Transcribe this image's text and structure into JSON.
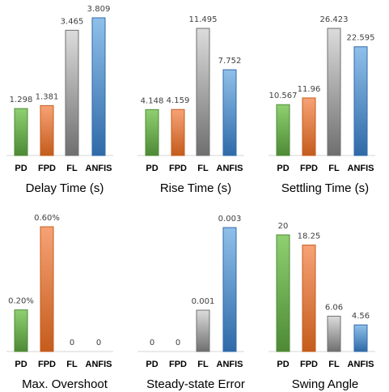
{
  "colors": {
    "PD": [
      "#4e8a36",
      "#8fd071"
    ],
    "FPD": [
      "#c45c1c",
      "#f7a276"
    ],
    "FL": [
      "#6f6f6f",
      "#dcdcdc"
    ],
    "ANFIS": [
      "#2f6aa8",
      "#8fc0ea"
    ]
  },
  "chart_data": [
    {
      "type": "bar",
      "title": "Delay Time  (s)",
      "categories": [
        "PD",
        "FPD",
        "FL",
        "ANFIS"
      ],
      "values": [
        1.298,
        1.381,
        3.465,
        3.809
      ],
      "labels": [
        "1.298",
        "1.381",
        "3.465",
        "3.809"
      ],
      "ylim": [
        0,
        3.809
      ]
    },
    {
      "type": "bar",
      "title": "Rise Time  (s)",
      "categories": [
        "PD",
        "FPD",
        "FL",
        "ANFIS"
      ],
      "values": [
        4.148,
        4.159,
        11.495,
        7.752
      ],
      "labels": [
        "4.148",
        "4.159",
        "11.495",
        "7.752"
      ],
      "ylim": [
        0,
        11.495
      ]
    },
    {
      "type": "bar",
      "title": "Settling Time  (s)",
      "categories": [
        "PD",
        "FPD",
        "FL",
        "ANFIS"
      ],
      "values": [
        10.567,
        11.96,
        26.423,
        22.595
      ],
      "labels": [
        "10.567",
        "11.96",
        "26.423",
        "22.595"
      ],
      "ylim": [
        0,
        26.423
      ]
    },
    {
      "type": "bar",
      "title": "Max. Overshoot",
      "categories": [
        "PD",
        "FPD",
        "FL",
        "ANFIS"
      ],
      "values": [
        0.2,
        0.6,
        0,
        0
      ],
      "labels": [
        "0.20%",
        "0.60%",
        "0",
        "0"
      ],
      "ylim": [
        0,
        0.6
      ]
    },
    {
      "type": "bar",
      "title": "Steady-state Error",
      "categories": [
        "PD",
        "FPD",
        "FL",
        "ANFIS"
      ],
      "values": [
        0,
        0,
        0.001,
        0.003
      ],
      "labels": [
        "0",
        "0",
        "0.001",
        "0.003"
      ],
      "ylim": [
        0,
        0.003
      ]
    },
    {
      "type": "bar",
      "title": "Swing Angle",
      "categories": [
        "PD",
        "FPD",
        "FL",
        "ANFIS"
      ],
      "values": [
        20,
        18.25,
        6.06,
        4.56
      ],
      "labels": [
        "20",
        "18.25",
        "6.06",
        "4.56"
      ],
      "ylim": [
        0,
        20
      ]
    }
  ]
}
